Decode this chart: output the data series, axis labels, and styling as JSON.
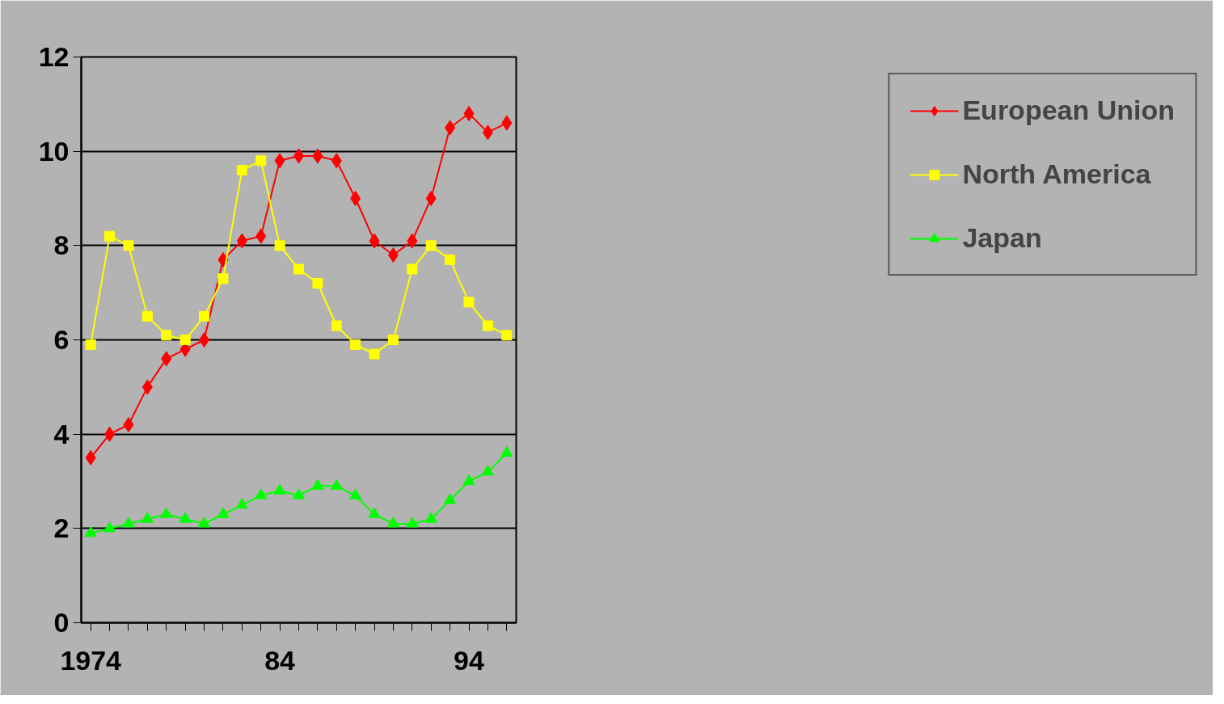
{
  "chart_data": {
    "type": "line",
    "categories": [
      "1974",
      null,
      null,
      null,
      null,
      null,
      null,
      null,
      null,
      null,
      "84",
      null,
      null,
      null,
      null,
      null,
      null,
      null,
      null,
      null,
      "94",
      null,
      null
    ],
    "ylim": [
      0,
      12
    ],
    "yticks": [
      0,
      2,
      4,
      6,
      8,
      10,
      12
    ],
    "grid": "y",
    "legend": "right",
    "series": [
      {
        "name": "European Union",
        "color": "#ff0000",
        "marker": "diamond",
        "values": [
          3.5,
          4.0,
          4.2,
          5.0,
          5.6,
          5.8,
          6.0,
          7.7,
          8.1,
          8.2,
          9.8,
          9.9,
          9.9,
          9.8,
          9.0,
          8.1,
          7.8,
          8.1,
          9.0,
          10.5,
          10.8,
          10.4,
          10.6
        ]
      },
      {
        "name": "North America",
        "color": "#ffff00",
        "marker": "square",
        "values": [
          5.9,
          8.2,
          8.0,
          6.5,
          6.1,
          6.0,
          6.5,
          7.3,
          9.6,
          9.8,
          8.0,
          7.5,
          7.2,
          6.3,
          5.9,
          5.7,
          6.0,
          7.5,
          8.0,
          7.7,
          6.8,
          6.3,
          6.1
        ]
      },
      {
        "name": "Japan",
        "color": "#00ff00",
        "marker": "triangle",
        "values": [
          1.9,
          2.0,
          2.1,
          2.2,
          2.3,
          2.2,
          2.1,
          2.3,
          2.5,
          2.7,
          2.8,
          2.7,
          2.9,
          2.9,
          2.7,
          2.3,
          2.1,
          2.1,
          2.2,
          2.6,
          3.0,
          3.2,
          3.6
        ]
      }
    ]
  }
}
